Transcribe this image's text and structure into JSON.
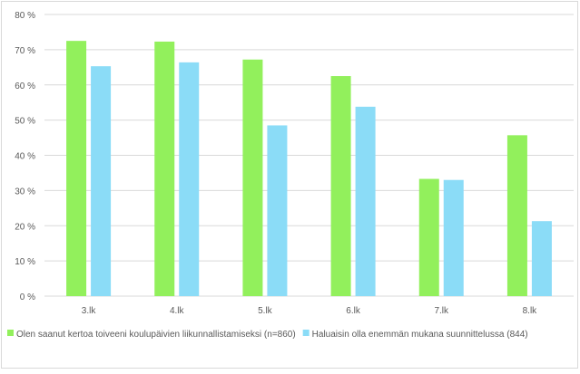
{
  "chart_data": {
    "type": "bar",
    "categories": [
      "3.lk",
      "4.lk",
      "5.lk",
      "6.lk",
      "7.lk",
      "8.lk"
    ],
    "series": [
      {
        "name": "Olen saanut kertoa toiveeni koulupäivien liikunnallistamiseksi (n=860)",
        "color": "#92f05c",
        "values": [
          72.5,
          72.3,
          67.2,
          62.5,
          33.3,
          45.7
        ]
      },
      {
        "name": "Haluaisin olla enemmän mukana suunnittelussa (844)",
        "color": "#8bdcf7",
        "values": [
          65.3,
          66.4,
          48.5,
          53.8,
          33.0,
          21.3
        ]
      }
    ],
    "ylim": [
      0,
      80
    ],
    "yticks": [
      "0 %",
      "10 %",
      "20 %",
      "30 %",
      "40 %",
      "50 %",
      "60 %",
      "70 %",
      "80 %"
    ],
    "ytick_values": [
      0,
      10,
      20,
      30,
      40,
      50,
      60,
      70,
      80
    ],
    "grid": true,
    "grid_color": "#d9d9d9",
    "legend_position": "bottom"
  }
}
